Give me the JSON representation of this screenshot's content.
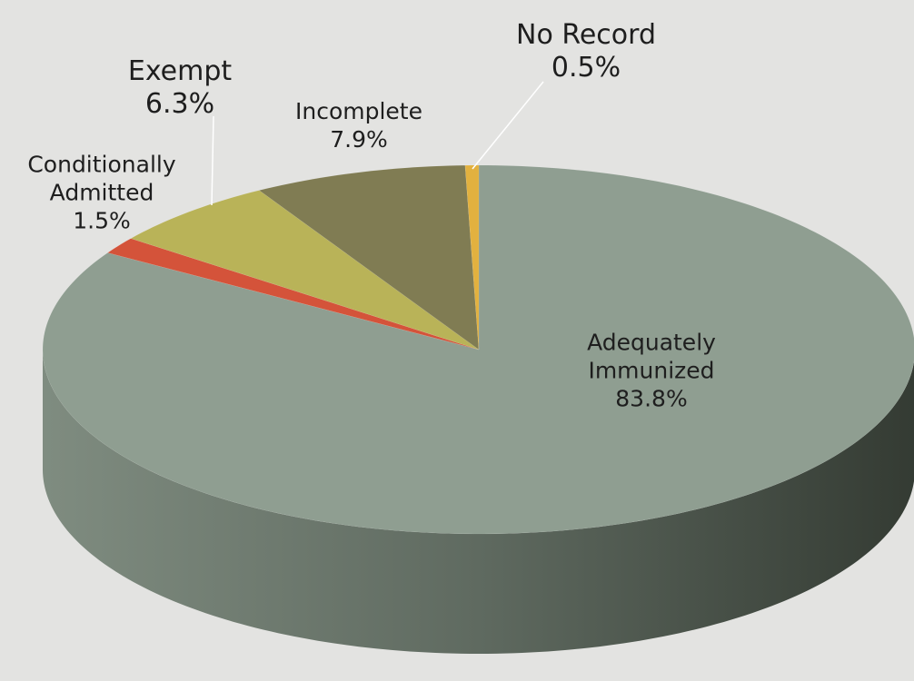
{
  "chart_data": {
    "type": "pie3d",
    "categories": [
      "Adequately Immunized",
      "Conditionally Admitted",
      "Exempt",
      "Incomplete",
      "No Record"
    ],
    "values": [
      83.8,
      1.5,
      6.3,
      7.9,
      0.5
    ],
    "value_labels": [
      "83.8%",
      "1.5%",
      "6.3%",
      "7.9%",
      "0.5%"
    ],
    "colors": [
      "#8f9e91",
      "#d4533a",
      "#b9b358",
      "#807c53",
      "#e2b13f"
    ]
  }
}
